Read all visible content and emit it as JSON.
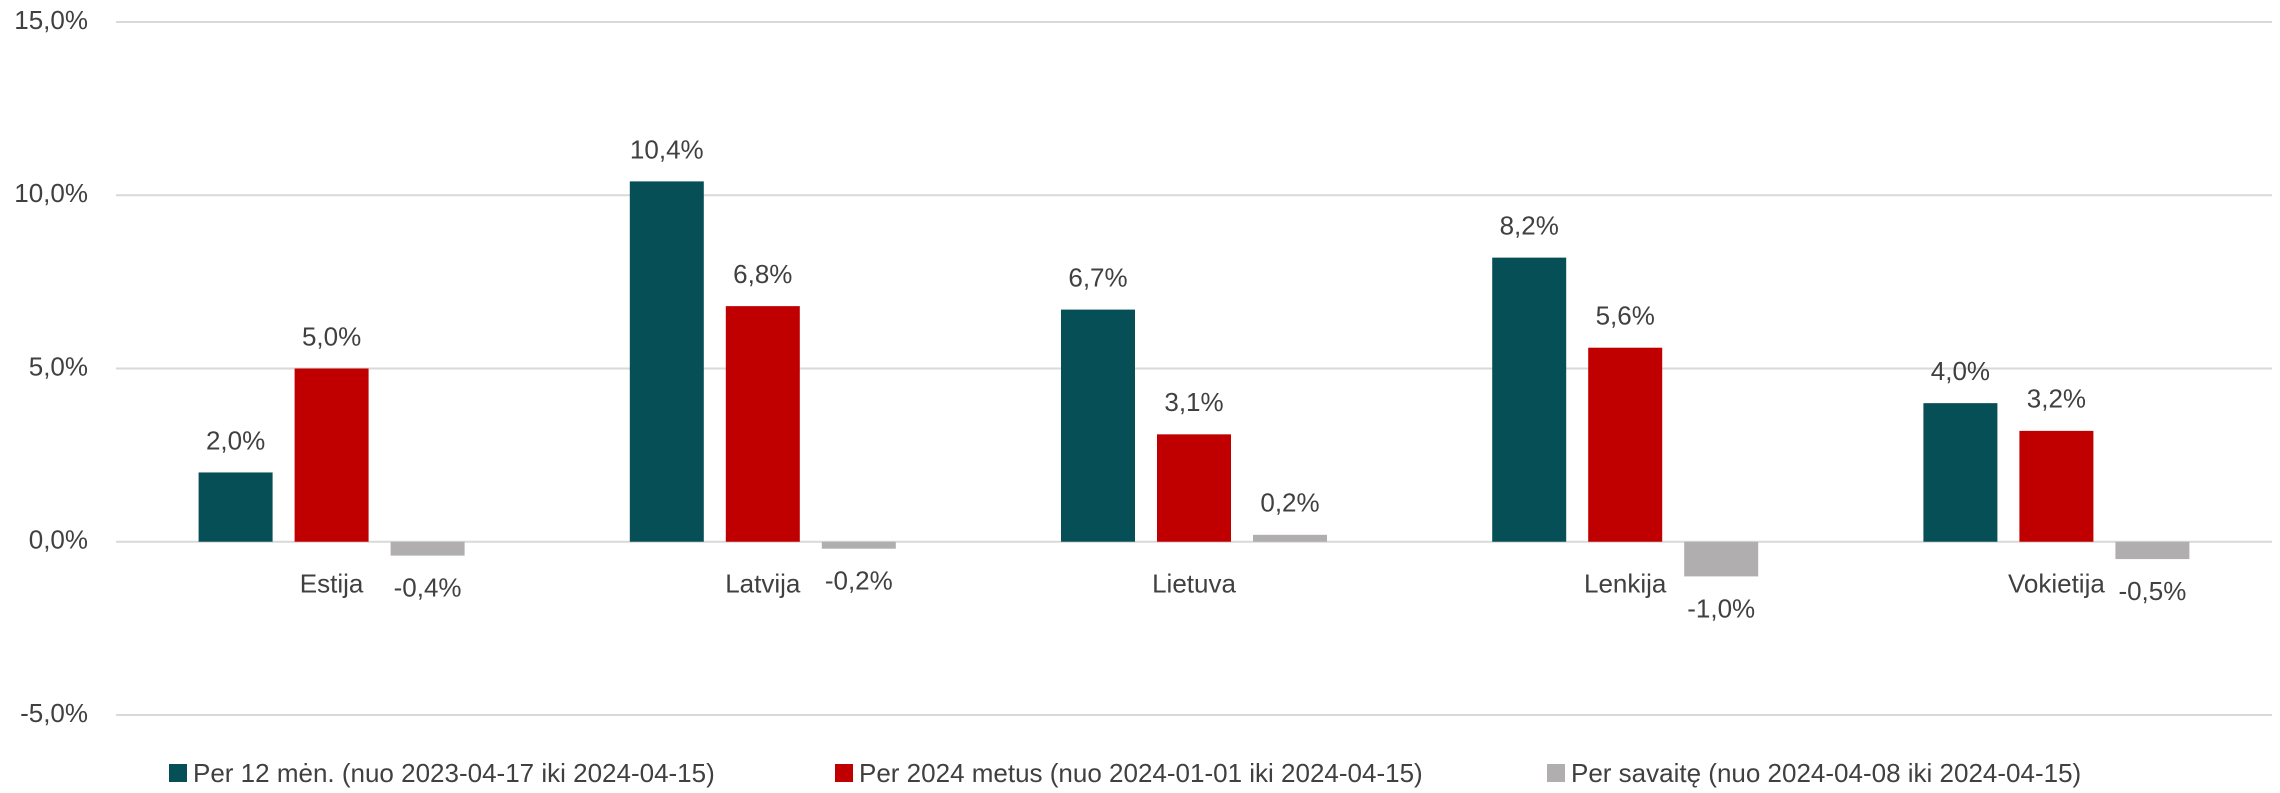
{
  "chart_data": {
    "type": "bar",
    "categories": [
      "Estija",
      "Latvija",
      "Lietuva",
      "Lenkija",
      "Vokietija"
    ],
    "series": [
      {
        "name": "Per 12 mėn. (nuo 2023-04-17 iki 2024-04-15)",
        "color": "#074f57",
        "values": [
          2.0,
          10.4,
          6.7,
          8.2,
          4.0
        ],
        "value_labels": [
          "2,0%",
          "10,4%",
          "6,7%",
          "8,2%",
          "4,0%"
        ]
      },
      {
        "name": "Per 2024 metus (nuo 2024-01-01 iki 2024-04-15)",
        "color": "#c00000",
        "values": [
          5.0,
          6.8,
          3.1,
          5.6,
          3.2
        ],
        "value_labels": [
          "5,0%",
          "6,8%",
          "3,1%",
          "5,6%",
          "3,2%"
        ]
      },
      {
        "name": "Per savaitę (nuo 2024-04-08 iki 2024-04-15)",
        "color": "#b0aeae",
        "values": [
          -0.4,
          -0.2,
          0.2,
          -1.0,
          -0.5
        ],
        "value_labels": [
          "-0,4%",
          "-0,2%",
          "0,2%",
          "-1,0%",
          "-0,5%"
        ]
      }
    ],
    "ylim": [
      -5,
      15
    ],
    "yticks": [
      {
        "value": -5,
        "label": "-5,0%"
      },
      {
        "value": 0,
        "label": "0,0%"
      },
      {
        "value": 5,
        "label": "5,0%"
      },
      {
        "value": 10,
        "label": "10,0%"
      },
      {
        "value": 15,
        "label": "15,0%"
      }
    ],
    "grid": true,
    "legend": "bottom"
  }
}
